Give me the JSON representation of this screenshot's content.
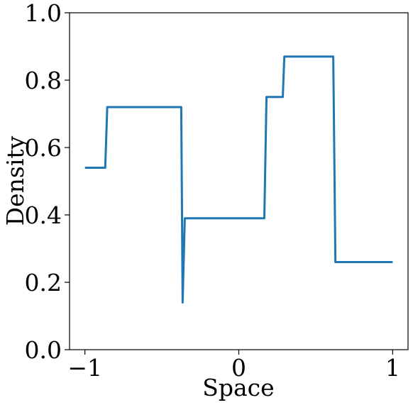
{
  "chart_data": {
    "type": "line",
    "xlabel": "Space",
    "ylabel": "Density",
    "series": [
      {
        "color": "#1f77b4",
        "x": [
          -1.0,
          -0.868,
          -0.855,
          -0.374,
          -0.365,
          -0.351,
          0.166,
          0.18,
          0.286,
          0.296,
          0.614,
          0.628,
          1.0
        ],
        "values": [
          0.54,
          0.54,
          0.72,
          0.72,
          0.14,
          0.39,
          0.39,
          0.75,
          0.75,
          0.87,
          0.87,
          0.26,
          0.26
        ]
      }
    ],
    "xlim": [
      -1.1,
      1.1
    ],
    "xticks": [
      {
        "value": -1,
        "label": "−1"
      },
      0,
      1
    ],
    "ylim": [
      0,
      1
    ],
    "yticks": [
      {
        "value": 0,
        "label": "0.0"
      },
      0.2,
      0.4,
      0.6,
      0.8,
      {
        "value": 1,
        "label": "1.0"
      }
    ],
    "grid": false
  }
}
